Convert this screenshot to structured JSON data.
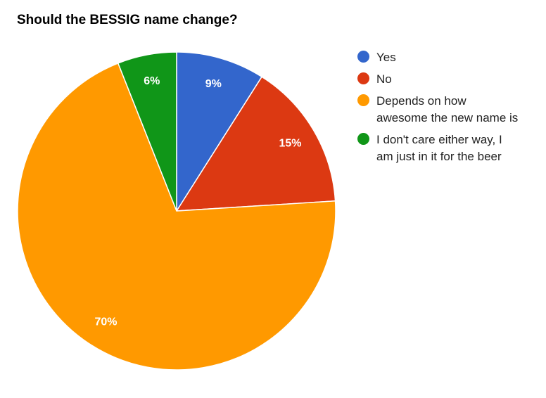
{
  "chart_data": {
    "type": "pie",
    "title": "Should the BESSIG name change?",
    "slices": [
      {
        "name": "Yes",
        "value": 9,
        "label": "9%",
        "color": "#3366cc"
      },
      {
        "name": "No",
        "value": 15,
        "label": "15%",
        "color": "#dc3912"
      },
      {
        "name": "Depends on how awesome the new name is",
        "value": 70,
        "label": "70%",
        "color": "#ff9900"
      },
      {
        "name": "I don't care either way, I am just in it for the beer",
        "value": 6,
        "label": "6%",
        "color": "#109618"
      }
    ],
    "legend_position": "right",
    "slice_border_color": "#ffffff"
  },
  "legend": {
    "items": [
      {
        "lines": [
          "Yes"
        ],
        "color": "#3366cc"
      },
      {
        "lines": [
          "No"
        ],
        "color": "#dc3912"
      },
      {
        "lines": [
          "Depends on how",
          "awesome the new name is"
        ],
        "color": "#ff9900"
      },
      {
        "lines": [
          "I don't care either way, I",
          "am just in it for the beer"
        ],
        "color": "#109618"
      }
    ]
  }
}
